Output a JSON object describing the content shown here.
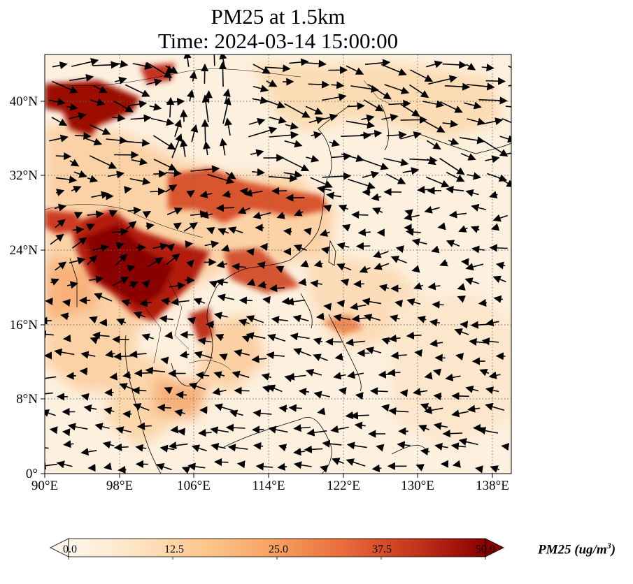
{
  "title": "PM25 at 1.5km",
  "subtitle": "Time: 2024-03-14 15:00:00",
  "map": {
    "lon_range": [
      90,
      140
    ],
    "lat_range": [
      0,
      45
    ],
    "lon_ticks": [
      "90°E",
      "98°E",
      "106°E",
      "114°E",
      "122°E",
      "130°E",
      "138°E"
    ],
    "lat_ticks": [
      "0°",
      "8°N",
      "16°N",
      "24°N",
      "32°N",
      "40°N"
    ],
    "gridlines": true,
    "colormap": [
      "#fff6ea",
      "#fde3c0",
      "#fdc68c",
      "#f79f5f",
      "#e8683a",
      "#c5341d",
      "#8a0000"
    ]
  },
  "colorbar": {
    "ticks": [
      "0.0",
      "12.5",
      "25.0",
      "37.5",
      "50.0"
    ],
    "label_main": "PM25 (ug/m",
    "label_sup": "3",
    "label_end": ")"
  }
}
